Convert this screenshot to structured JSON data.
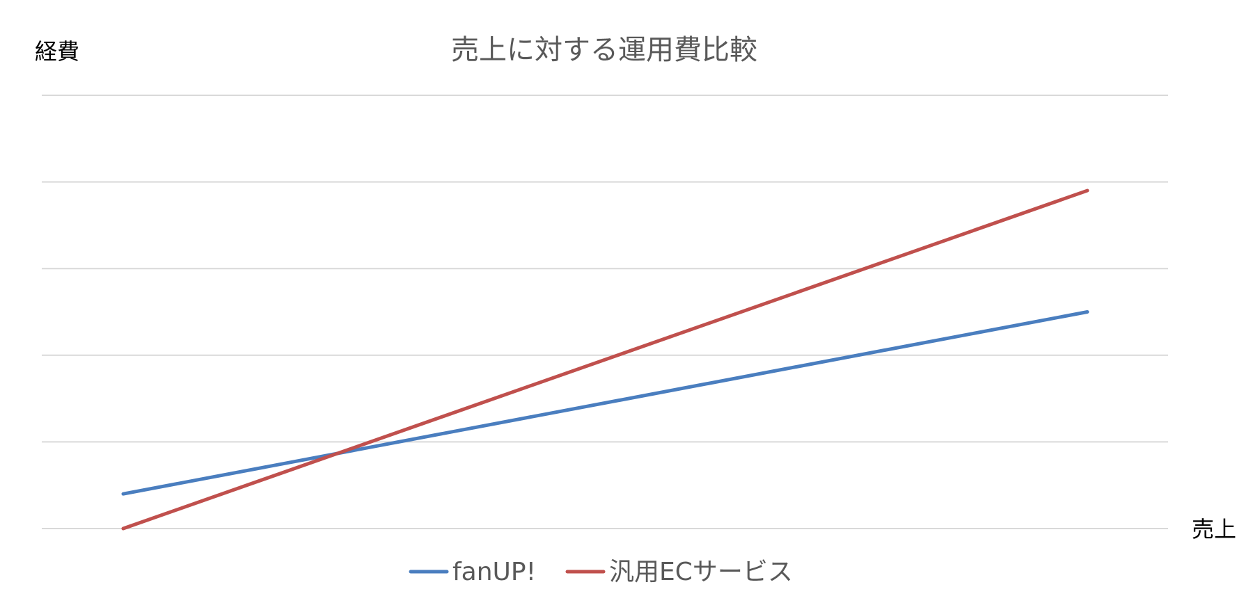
{
  "chart_data": {
    "type": "line",
    "title": "売上に対する運用費比較",
    "ylabel": "経費",
    "xlabel": "売上",
    "x": [
      0,
      1
    ],
    "ylim": [
      0,
      5
    ],
    "grid": true,
    "legend_position": "bottom",
    "series": [
      {
        "name": "fanUP!",
        "color": "#4a7ebf",
        "values": [
          0.4,
          2.5
        ]
      },
      {
        "name": "汎用ECサービス",
        "color": "#c0504d",
        "values": [
          0.0,
          3.9
        ]
      }
    ]
  }
}
